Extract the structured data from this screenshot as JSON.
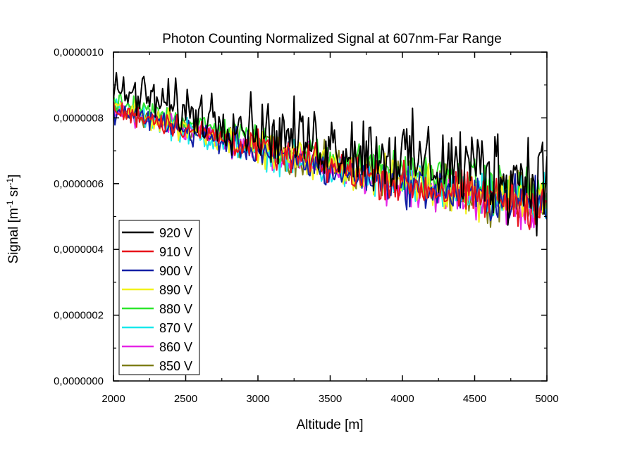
{
  "chart_data": {
    "type": "line",
    "title": "Photon Counting Normalized Signal at 607nm-Far Range",
    "xlabel": "Altitude [m]",
    "ylabel": {
      "base": "Signal [m",
      "exp1": "-1",
      "mid": " sr",
      "exp2": "-1",
      "end": "]"
    },
    "xlim": [
      2000,
      5000
    ],
    "ylim": [
      0,
      1e-06
    ],
    "x_ticks": [
      2000,
      2500,
      3000,
      3500,
      4000,
      4500,
      5000
    ],
    "x_tick_labels": [
      "2000",
      "2500",
      "3000",
      "3500",
      "4000",
      "4500",
      "5000"
    ],
    "y_ticks": [
      0,
      2e-07,
      4e-07,
      6e-07,
      8e-07,
      1e-06
    ],
    "y_tick_labels": [
      "0,0000000",
      "0,0000002",
      "0,0000004",
      "0,0000006",
      "0,0000008",
      "0,0000010"
    ],
    "grid": false,
    "legend_position": "bottom-left",
    "x": [
      2000,
      2250,
      2500,
      2750,
      3000,
      3250,
      3500,
      3750,
      4000,
      4250,
      4500,
      4750,
      5000
    ],
    "series": [
      {
        "name": "920 V",
        "color": "#000000",
        "mean": [
          8.8e-07,
          8.6e-07,
          8.2e-07,
          8e-07,
          7.7e-07,
          7.4e-07,
          7.2e-07,
          7e-07,
          6.8e-07,
          6.6e-07,
          6.5e-07,
          6.3e-07,
          6.2e-07
        ],
        "noise": 1.6e-07
      },
      {
        "name": "910 V",
        "color": "#e8121a",
        "mean": [
          8.2e-07,
          8e-07,
          7.7e-07,
          7.4e-07,
          7.1e-07,
          6.8e-07,
          6.5e-07,
          6.3e-07,
          6e-07,
          5.8e-07,
          5.6e-07,
          5.5e-07,
          5.4e-07
        ],
        "noise": 8e-08
      },
      {
        "name": "900 V",
        "color": "#1320a6",
        "mean": [
          8.2e-07,
          8e-07,
          7.6e-07,
          7.3e-07,
          7e-07,
          6.7e-07,
          6.4e-07,
          6.2e-07,
          6e-07,
          5.8e-07,
          5.6e-07,
          5.5e-07,
          5.4e-07
        ],
        "noise": 8e-08
      },
      {
        "name": "890 V",
        "color": "#f2f21c",
        "mean": [
          8.3e-07,
          8e-07,
          7.7e-07,
          7.4e-07,
          7.1e-07,
          6.8e-07,
          6.6e-07,
          6.3e-07,
          6.1e-07,
          5.9e-07,
          5.7e-07,
          5.6e-07,
          5.5e-07
        ],
        "noise": 8e-08
      },
      {
        "name": "880 V",
        "color": "#2ee62e",
        "mean": [
          8.4e-07,
          8.2e-07,
          7.9e-07,
          7.6e-07,
          7.3e-07,
          7e-07,
          6.8e-07,
          6.6e-07,
          6.4e-07,
          6.2e-07,
          6e-07,
          5.8e-07,
          5.7e-07
        ],
        "noise": 8e-08
      },
      {
        "name": "870 V",
        "color": "#19e8ec",
        "mean": [
          8.3e-07,
          8e-07,
          7.6e-07,
          7.3e-07,
          7e-07,
          6.7e-07,
          6.4e-07,
          6.2e-07,
          6e-07,
          5.8e-07,
          5.6e-07,
          5.5e-07,
          5.4e-07
        ],
        "noise": 8e-08
      },
      {
        "name": "860 V",
        "color": "#e625e6",
        "mean": [
          8.2e-07,
          8e-07,
          7.7e-07,
          7.4e-07,
          7.1e-07,
          6.8e-07,
          6.5e-07,
          6.2e-07,
          6e-07,
          5.8e-07,
          5.6e-07,
          5.4e-07,
          5.3e-07
        ],
        "noise": 8e-08
      },
      {
        "name": "850 V",
        "color": "#7f7f19",
        "mean": [
          8.2e-07,
          8e-07,
          7.7e-07,
          7.4e-07,
          7.1e-07,
          6.8e-07,
          6.6e-07,
          6.3e-07,
          6.1e-07,
          5.9e-07,
          5.7e-07,
          5.6e-07,
          5.5e-07
        ],
        "noise": 8e-08
      }
    ]
  }
}
